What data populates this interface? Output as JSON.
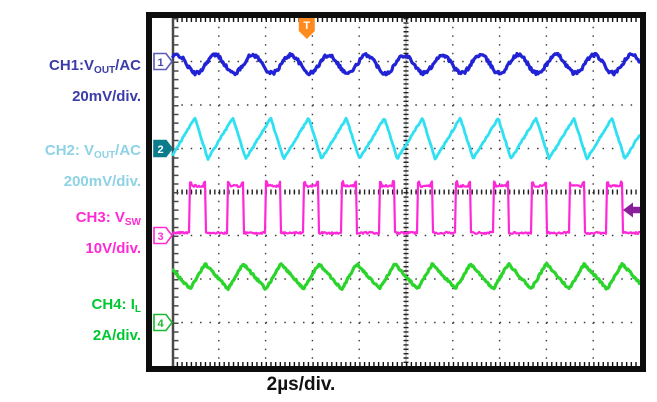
{
  "labels": {
    "ch1": {
      "l1pre": "CH1:V",
      "l1sub": "OUT",
      "l1post": "/AC",
      "l2": "20mV/div.",
      "color": "#3c3ca8"
    },
    "ch2": {
      "l1pre": "CH2: V",
      "l1sub": "OUT",
      "l1post": "/AC",
      "l2": "200mV/div.",
      "color": "#8ed2e6"
    },
    "ch3": {
      "l1pre": "CH3: V",
      "l1sub": "SW",
      "l1post": "",
      "l2": "10V/div.",
      "color": "#ff2ad4"
    },
    "ch4": {
      "l1pre": "CH4: I",
      "l1sub": "L",
      "l1post": "",
      "l2": "2A/div.",
      "color": "#00c832"
    }
  },
  "timebase_label": "2µs/div.",
  "trigger": {
    "marker_glyph": "T",
    "marker_color": "#ff8a1e",
    "position_div_from_left": 2.88,
    "level_arrow_color": "#8b1f9b"
  },
  "chart_data": {
    "type": "line",
    "xlabel": "2µs/div.",
    "x_axis": {
      "divisions": 10,
      "us_per_div": 2,
      "minor_per_div": 5
    },
    "y_axis": {
      "divisions": 8,
      "minor_per_div": 5
    },
    "grid": "dotted",
    "switching_period_div": 0.81,
    "switching_period_us": 1.62,
    "duty_cycle": 0.4,
    "series": [
      {
        "name": "CH1: VOUT/AC",
        "scale": "20mV/div.",
        "color": "#2121d6",
        "marker": "1",
        "flag": {
          "fill": "#ffffff",
          "stroke": "#5a5ab8",
          "text": "#4a4ab0"
        },
        "zero_div_from_top": 1,
        "shape": "sine",
        "offset_div": -0.06,
        "amp_div": 0.21,
        "min_phase": 0.16,
        "noise_div": 0.042
      },
      {
        "name": "CH2: VOUT/AC",
        "scale": "200mV/div.",
        "color": "#2fe0f2",
        "marker": "2",
        "flag": {
          "fill": "#0b7c8c",
          "stroke": "#0b7c8c",
          "text": "#ffffff"
        },
        "zero_div_from_top": 3,
        "shape": "sawtooth",
        "peak_div": 0.7,
        "trough_div": -0.24,
        "peak_phase": 0.13,
        "trough_phase": 0.47,
        "noise_div": 0.02
      },
      {
        "name": "CH3: VSW",
        "scale": "10V/div.",
        "color": "#ff28d8",
        "marker": "3",
        "flag": {
          "fill": "#ffffff",
          "stroke": "#ff2ad4",
          "text": "#ff2ad4"
        },
        "zero_div_from_top": 5,
        "shape": "pulse",
        "high_div": 1.14,
        "low_div": 0.06,
        "duty": 0.4,
        "overshoot_div": 0.09,
        "noise_div": 0.024
      },
      {
        "name": "CH4: IL",
        "scale": "2A/div.",
        "color": "#2ad42a",
        "marker": "4",
        "flag": {
          "fill": "#ffffff",
          "stroke": "#1fb832",
          "text": "#1fb832"
        },
        "zero_div_from_top": 7,
        "shape": "triangle",
        "peak_div": 1.35,
        "trough_div": 0.77,
        "rise_end_phase": 0.4,
        "noise_div": 0.028
      }
    ]
  }
}
